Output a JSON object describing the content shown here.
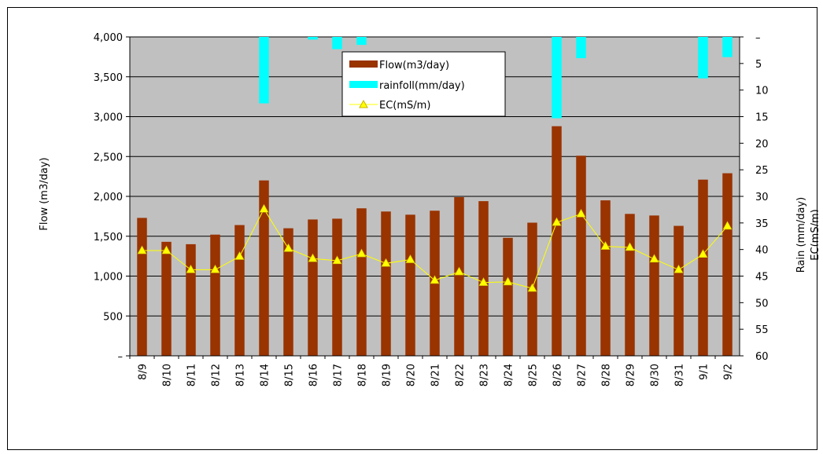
{
  "chart_data": {
    "type": "bar",
    "categories": [
      "8/9",
      "8/10",
      "8/11",
      "8/12",
      "8/13",
      "8/14",
      "8/15",
      "8/16",
      "8/17",
      "8/18",
      "8/19",
      "8/20",
      "8/21",
      "8/22",
      "8/23",
      "8/24",
      "8/25",
      "8/26",
      "8/27",
      "8/28",
      "8/29",
      "8/30",
      "8/31",
      "9/1",
      "9/2"
    ],
    "series": [
      {
        "name": "Flow(m3/day)",
        "type": "bar",
        "axis": "left",
        "color": "#993300",
        "values": [
          1730,
          1430,
          1400,
          1520,
          1640,
          2200,
          1600,
          1710,
          1720,
          1850,
          1810,
          1770,
          1820,
          1990,
          1940,
          1480,
          1670,
          2880,
          2510,
          1950,
          1780,
          1760,
          1630,
          2210,
          2290
        ]
      },
      {
        "name": "rainfoll(mm/day)",
        "type": "bar",
        "axis": "right",
        "direction": "down",
        "color": "#00FFFF",
        "values": [
          0,
          0,
          0,
          0,
          0,
          12.5,
          0,
          0.5,
          2.3,
          1.5,
          0,
          0,
          0,
          0,
          0,
          0,
          0,
          15.3,
          4.0,
          0,
          0,
          0,
          0,
          7.8,
          3.8
        ]
      },
      {
        "name": "EC(mS/m)",
        "type": "line",
        "axis": "right",
        "color": "#FFFF00",
        "marker": "triangle",
        "values": [
          40.2,
          40.2,
          43.8,
          43.8,
          41.3,
          32.4,
          39.8,
          41.7,
          42.1,
          40.8,
          42.6,
          41.9,
          45.8,
          44.2,
          46.2,
          46.1,
          47.3,
          34.9,
          33.3,
          39.4,
          39.6,
          41.8,
          43.8,
          40.9,
          35.6
        ]
      }
    ],
    "y_left": {
      "label": "Flow (m3/day)",
      "ylim": [
        0,
        4000
      ],
      "ticks": [
        "–",
        "500",
        "1,000",
        "1,500",
        "2,000",
        "2,500",
        "3,000",
        "3,500",
        "4,000"
      ]
    },
    "y_right": {
      "label": "Rain (mm/day)",
      "label2": "EC(mS/m)",
      "ylim": [
        0,
        60
      ],
      "inverted": true,
      "ticks": [
        "–",
        "5",
        "10",
        "15",
        "20",
        "25",
        "30",
        "35",
        "40",
        "45",
        "50",
        "55",
        "60"
      ]
    },
    "grid": true,
    "plot_background": "#C0C0C0",
    "legend_position": "top-center"
  }
}
